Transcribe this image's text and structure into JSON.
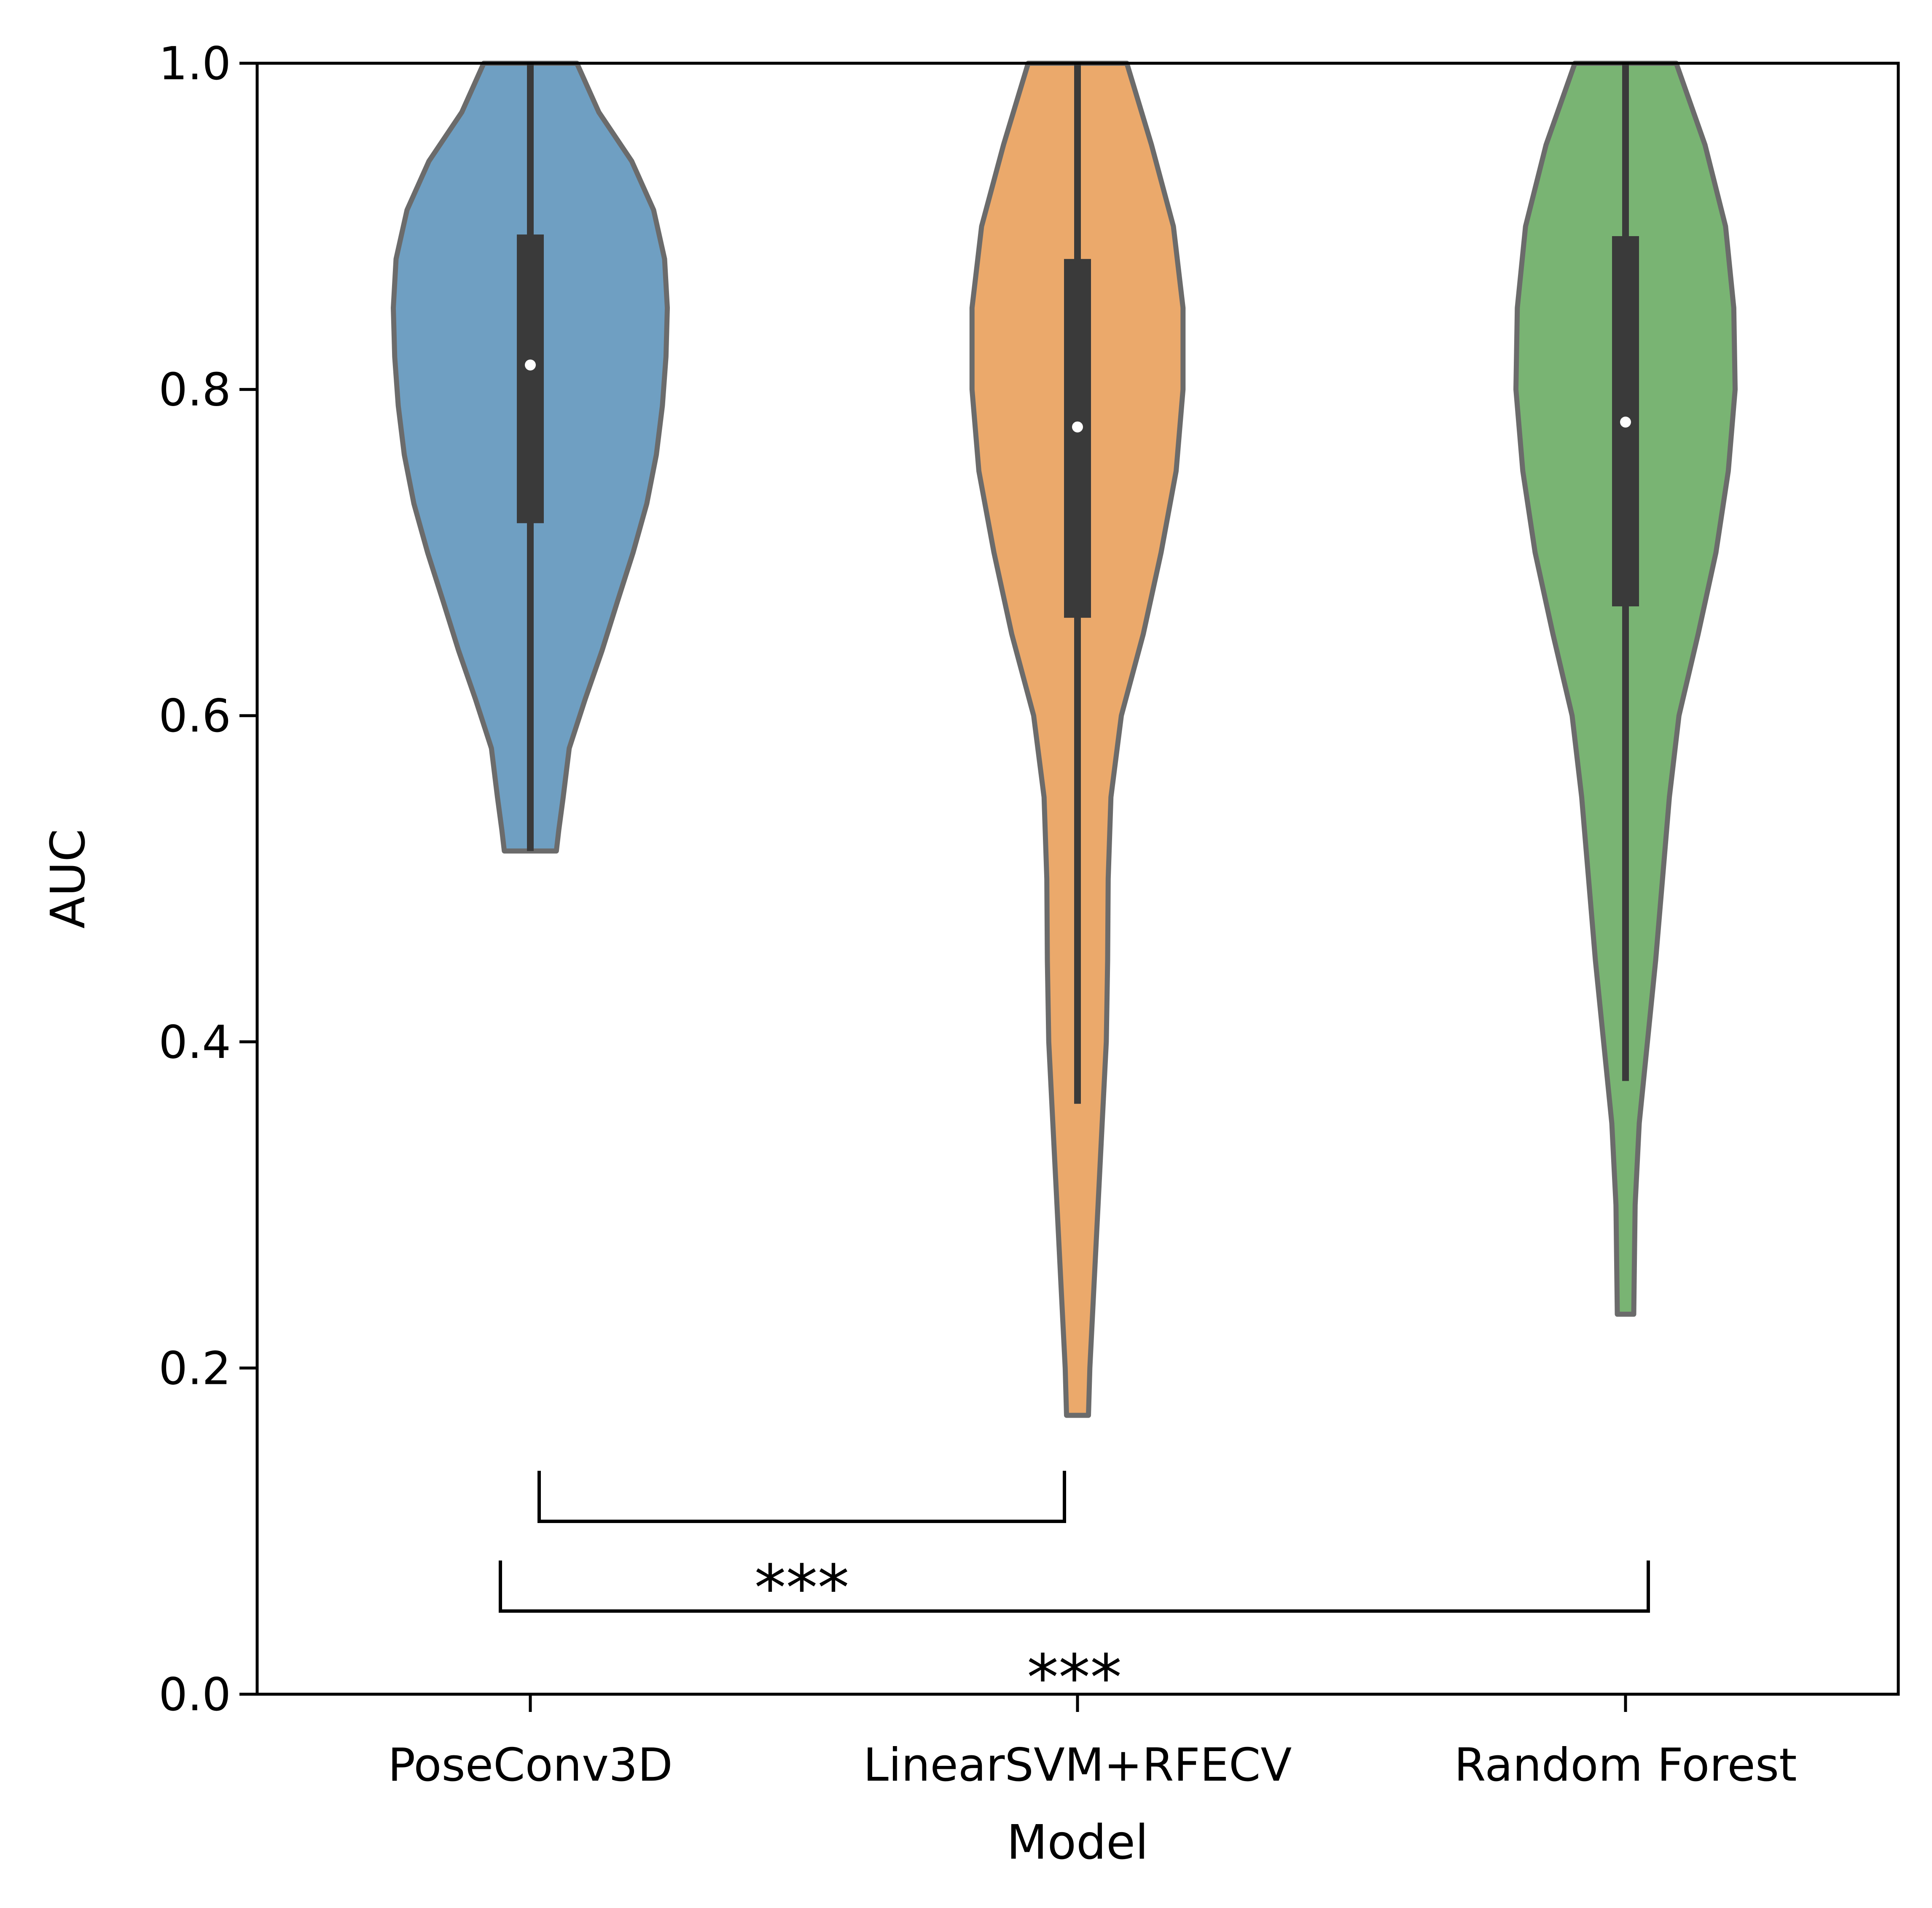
{
  "chart_data": {
    "type": "violin",
    "xlabel": "Model",
    "ylabel": "AUC",
    "ylim": [
      0.0,
      1.0
    ],
    "yticks": [
      "0.0",
      "0.2",
      "0.4",
      "0.6",
      "0.8",
      "1.0"
    ],
    "categories": [
      "PoseConv3D",
      "LinearSVM+RFECV",
      "Random Forest"
    ],
    "series": [
      {
        "category": "PoseConv3D",
        "color": "#6f9fc2",
        "min": 0.517,
        "max": 1.0,
        "q1": 0.718,
        "median": 0.815,
        "q3": 0.895,
        "whisker_low": 0.517,
        "whisker_high": 1.0,
        "profile": [
          [
            0.517,
            0.095
          ],
          [
            0.53,
            0.104
          ],
          [
            0.55,
            0.12
          ],
          [
            0.58,
            0.142
          ],
          [
            0.61,
            0.2
          ],
          [
            0.64,
            0.262
          ],
          [
            0.67,
            0.318
          ],
          [
            0.7,
            0.375
          ],
          [
            0.73,
            0.425
          ],
          [
            0.76,
            0.46
          ],
          [
            0.79,
            0.482
          ],
          [
            0.82,
            0.495
          ],
          [
            0.85,
            0.5
          ],
          [
            0.88,
            0.49
          ],
          [
            0.91,
            0.45
          ],
          [
            0.94,
            0.37
          ],
          [
            0.97,
            0.25
          ],
          [
            1.0,
            0.17
          ]
        ]
      },
      {
        "category": "LinearSVM+RFECV",
        "color": "#eba96b",
        "min": 0.171,
        "max": 1.0,
        "q1": 0.66,
        "median": 0.777,
        "q3": 0.88,
        "whisker_low": 0.362,
        "whisker_high": 1.0,
        "profile": [
          [
            0.171,
            0.04
          ],
          [
            0.2,
            0.045
          ],
          [
            0.25,
            0.06
          ],
          [
            0.3,
            0.075
          ],
          [
            0.35,
            0.09
          ],
          [
            0.4,
            0.105
          ],
          [
            0.45,
            0.11
          ],
          [
            0.5,
            0.112
          ],
          [
            0.55,
            0.122
          ],
          [
            0.6,
            0.16
          ],
          [
            0.65,
            0.24
          ],
          [
            0.7,
            0.305
          ],
          [
            0.75,
            0.36
          ],
          [
            0.8,
            0.385
          ],
          [
            0.85,
            0.385
          ],
          [
            0.9,
            0.35
          ],
          [
            0.95,
            0.27
          ],
          [
            1.0,
            0.18
          ]
        ]
      },
      {
        "category": "Random Forest",
        "color": "#79b473",
        "min": 0.233,
        "max": 1.0,
        "q1": 0.667,
        "median": 0.78,
        "q3": 0.894,
        "whisker_low": 0.376,
        "whisker_high": 1.0,
        "profile": [
          [
            0.233,
            0.03
          ],
          [
            0.26,
            0.032
          ],
          [
            0.3,
            0.035
          ],
          [
            0.35,
            0.05
          ],
          [
            0.4,
            0.08
          ],
          [
            0.45,
            0.11
          ],
          [
            0.5,
            0.135
          ],
          [
            0.55,
            0.16
          ],
          [
            0.6,
            0.195
          ],
          [
            0.65,
            0.265
          ],
          [
            0.7,
            0.33
          ],
          [
            0.75,
            0.375
          ],
          [
            0.8,
            0.4
          ],
          [
            0.85,
            0.395
          ],
          [
            0.9,
            0.365
          ],
          [
            0.95,
            0.29
          ],
          [
            1.0,
            0.185
          ]
        ]
      }
    ],
    "significance": [
      {
        "from": 0,
        "to": 1,
        "label": "***",
        "y_top": 0.137,
        "y_bar": 0.106
      },
      {
        "from": 0,
        "to": 2,
        "label": "***",
        "y_top": 0.082,
        "y_bar": 0.051
      }
    ]
  }
}
